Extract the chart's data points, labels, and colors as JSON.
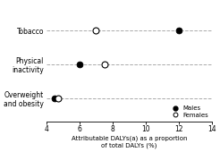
{
  "categories": [
    "Overweight\nand obesity",
    "Physical\ninactivity",
    "Tobacco"
  ],
  "males": [
    4.5,
    6.0,
    12.0
  ],
  "females": [
    4.7,
    7.5,
    7.0
  ],
  "xlim": [
    4,
    14
  ],
  "xticks": [
    4,
    6,
    8,
    10,
    12,
    14
  ],
  "xlabel_line1": "Attributable DALYs(a) as a proportion",
  "xlabel_line2": "of total DALYs (%)",
  "male_color": "#000000",
  "female_color": "#ffffff",
  "marker_size": 5,
  "grid_color": "#aaaaaa",
  "background_color": "#ffffff",
  "legend_males": "Males",
  "legend_females": "Females",
  "y_label_fontsize": 5.5,
  "x_label_fontsize": 5.0,
  "x_tick_fontsize": 5.5,
  "legend_fontsize": 5.0
}
